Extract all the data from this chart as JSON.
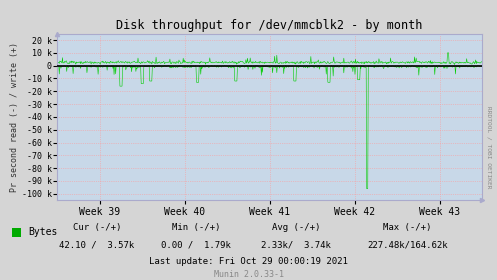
{
  "title": "Disk throughput for /dev/mmcblk2 - by month",
  "ylabel": "Pr second read (-) / write (+)",
  "xlabel_ticks": [
    "Week 39",
    "Week 40",
    "Week 41",
    "Week 42",
    "Week 43"
  ],
  "ylim": [
    -105000,
    25000
  ],
  "yticks": [
    -100000,
    -90000,
    -80000,
    -70000,
    -60000,
    -50000,
    -40000,
    -30000,
    -20000,
    -10000,
    0,
    10000,
    20000
  ],
  "ytick_labels": [
    "-100 k",
    "-90 k",
    "-80 k",
    "-70 k",
    "-60 k",
    "-50 k",
    "-40 k",
    "-30 k",
    "-20 k",
    "-10 k",
    "0",
    "10 k",
    "20 k"
  ],
  "bg_color": "#d5d5d5",
  "plot_bg_color": "#c8d8e8",
  "grid_color": "#ff9999",
  "line_color": "#00cc00",
  "zero_line_color": "#000000",
  "border_color": "#aaaacc",
  "right_label": "RRDTOOL / TOBI OETIKER",
  "legend_label": "Bytes",
  "legend_color": "#00aa00",
  "footer_cur": "Cur (-/+)",
  "footer_min": "Min (-/+)",
  "footer_avg": "Avg (-/+)",
  "footer_max": "Max (-/+)",
  "footer_cur_val": "42.10 /  3.57k",
  "footer_min_val": "0.00 /  1.79k",
  "footer_avg_val": "2.33k/  3.74k",
  "footer_max_val": "227.48k/164.62k",
  "footer_update": "Last update: Fri Oct 29 00:00:19 2021",
  "footer_munin": "Munin 2.0.33-1",
  "xlim": [
    38.5,
    43.5
  ],
  "xticks": [
    39,
    40,
    41,
    42,
    43
  ]
}
